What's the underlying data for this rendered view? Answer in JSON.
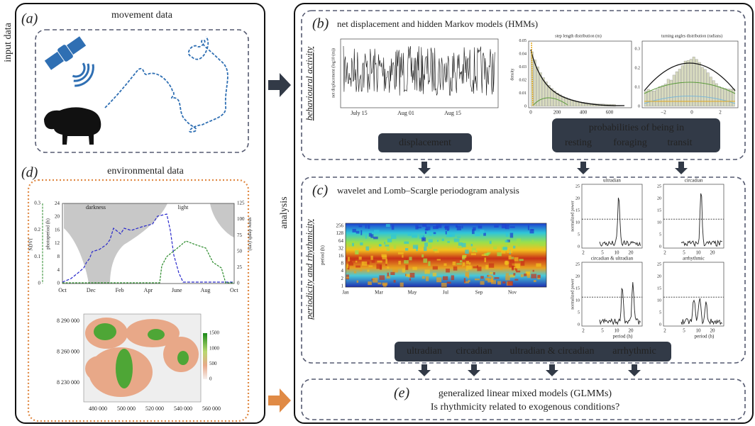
{
  "labels": {
    "input_data": "input data",
    "analysis": "analysis"
  },
  "panel_a": {
    "letter": "(a)",
    "title": "movement data"
  },
  "panel_d": {
    "letter": "(d)",
    "title": "environmental data",
    "timeseries": {
      "darkness": "darkness",
      "light": "light",
      "ndvi_label": "NDVI",
      "ndvi_ticks": [
        "0",
        "0.1",
        "0.2",
        "0.3"
      ],
      "photoperiod_label": "photoperiod (h)",
      "photoperiod_ticks": [
        "0",
        "4",
        "8",
        "12",
        "16",
        "20",
        "24"
      ],
      "snow_label": "snow depth (cm)",
      "snow_ticks": [
        "0",
        "25",
        "50",
        "75",
        "100",
        "125"
      ],
      "x_ticks": [
        "Oct",
        "Dec",
        "Feb",
        "Apr",
        "June",
        "Aug",
        "Oct"
      ]
    },
    "map": {
      "y_ticks": [
        "8 290 000",
        "8 260 000",
        "8 230 000"
      ],
      "x_ticks": [
        "480 000",
        "500 000",
        "520 000",
        "540 000",
        "560 000"
      ],
      "legend_ticks": [
        "1500",
        "1000",
        "500",
        "0"
      ]
    }
  },
  "panel_b": {
    "letter": "(b)",
    "title": "net displacement and hidden Markov models (HMMs)",
    "side_label": "behavioural activity",
    "displacement_plot": {
      "y_label": "net displacement (log10 (m))",
      "x_ticks": [
        "July 15",
        "Aug 01",
        "Aug 15"
      ]
    },
    "step_plot": {
      "title": "step length distribution (m)",
      "y_label": "density",
      "y_ticks": [
        "0",
        "0.01",
        "0.02",
        "0.03",
        "0.04",
        "0.05"
      ],
      "x_ticks": [
        "0",
        "200",
        "400",
        "600"
      ]
    },
    "angle_plot": {
      "title": "turning angles distribution (radians)",
      "y_ticks": [
        "0",
        "0.1",
        "0.2",
        "0.3"
      ],
      "x_ticks": [
        "−2",
        "0",
        "2"
      ]
    },
    "displacement_box": "displacement",
    "states_box": {
      "title": "probabilities of being in",
      "resting": "resting",
      "foraging": "foraging",
      "transit": "transit"
    }
  },
  "panel_c": {
    "letter": "(c)",
    "title": "wavelet and Lomb–Scargle periodogram analysis",
    "side_label": "periodicity and rhythmicity",
    "wavelet": {
      "y_label": "period (h)",
      "y_ticks": [
        "256",
        "128",
        "64",
        "32",
        "16",
        "8",
        "4",
        "2",
        "1"
      ],
      "x_ticks": [
        "Jan",
        "Mar",
        "May",
        "Jul",
        "Sep",
        "Nov"
      ]
    },
    "periodograms": {
      "titles": [
        "ultradian",
        "circadian",
        "circadian & ultradian",
        "arrhythmic"
      ],
      "y_label": "normalized power",
      "x_label": "period (h)",
      "y_ticks": [
        "0",
        "5",
        "10",
        "15",
        "20",
        "25"
      ],
      "x_ticks": [
        "2",
        "5",
        "10",
        "20"
      ]
    },
    "classes": [
      "ultradian",
      "circadian",
      "ultradian & circadian",
      "arrhythmic"
    ]
  },
  "panel_e": {
    "letter": "(e)",
    "title": "generalized linear mixed models (GLMMs)",
    "question": "Is rhythmicity related to exogenous conditions?"
  }
}
